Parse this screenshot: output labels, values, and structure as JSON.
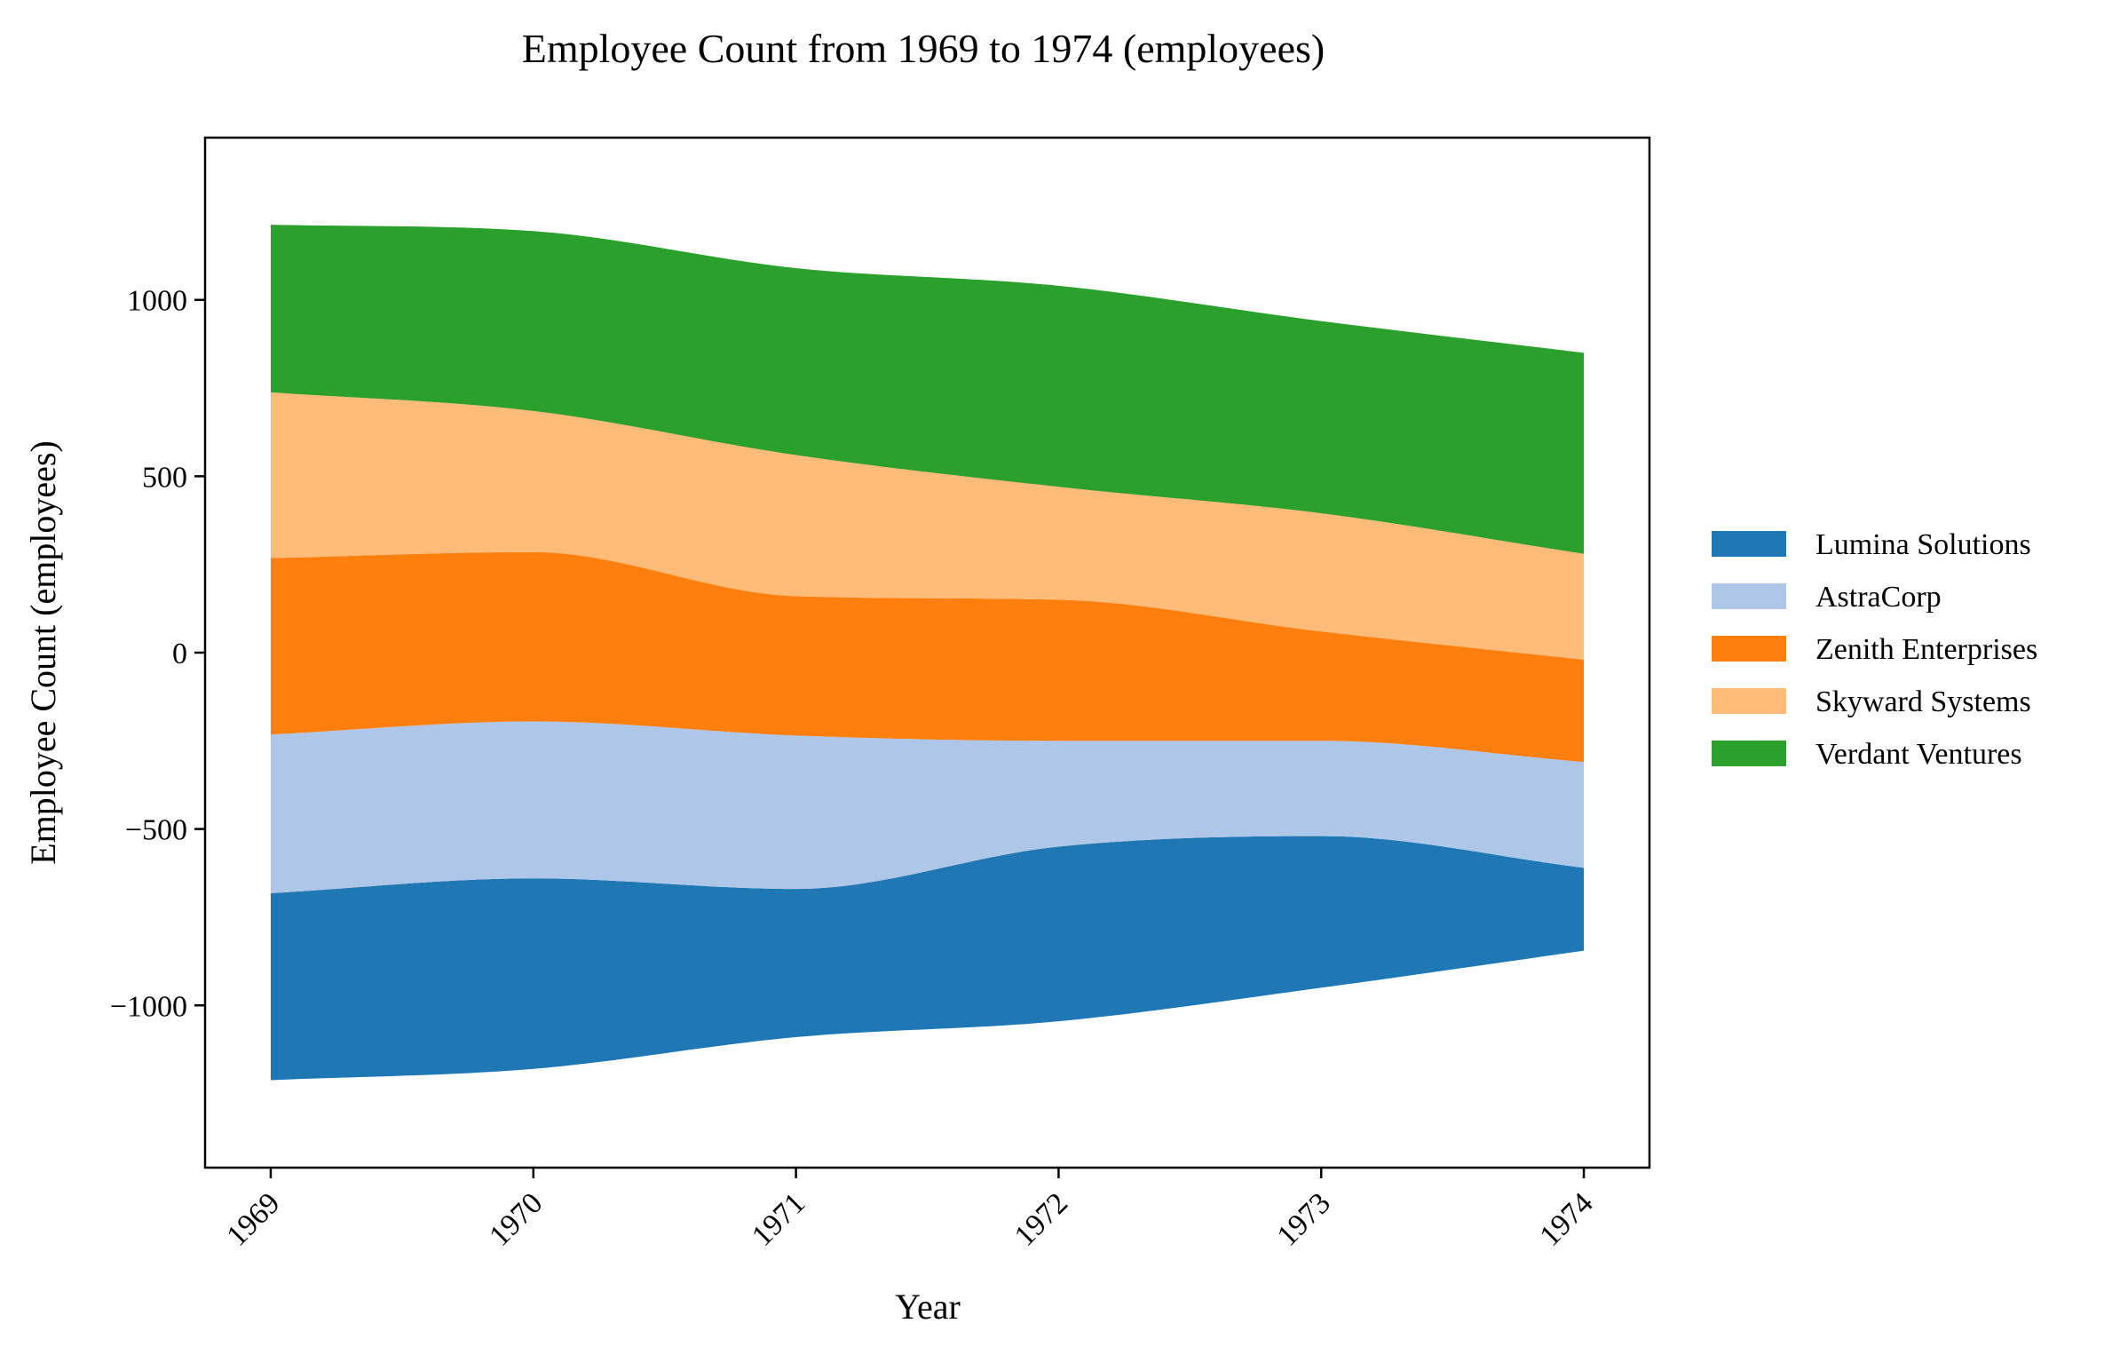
{
  "chart_data": {
    "type": "area",
    "subtype": "streamgraph",
    "title": "Employee Count from 1969 to 1974 (employees)",
    "xlabel": "Year",
    "ylabel": "Employee Count (employees)",
    "x": [
      1969,
      1970,
      1971,
      1972,
      1973,
      1974
    ],
    "x_tick_labels": [
      "1969",
      "1970",
      "1971",
      "1972",
      "1973",
      "1974"
    ],
    "y_ticks": [
      -1000,
      -500,
      0,
      500,
      1000
    ],
    "y_tick_labels": [
      "−1000",
      "−500",
      "0",
      "500",
      "1000"
    ],
    "ylim": [
      -1460,
      1460
    ],
    "xlim": [
      1968.75,
      1974.25
    ],
    "grid": false,
    "legend_position": "right",
    "baseline": [
      -1212,
      -1180,
      -1090,
      -1045,
      -950,
      -845
    ],
    "series": [
      {
        "name": "Lumina Solutions",
        "color": "#1f77b4",
        "values": [
          530,
          540,
          420,
          495,
          430,
          235
        ]
      },
      {
        "name": "AstraCorp",
        "color": "#aec7e8",
        "values": [
          450,
          445,
          435,
          300,
          270,
          300
        ]
      },
      {
        "name": "Zenith Enterprises",
        "color": "#ff7f0e",
        "values": [
          500,
          480,
          395,
          400,
          310,
          290
        ]
      },
      {
        "name": "Skyward Systems",
        "color": "#ffbb78",
        "values": [
          470,
          400,
          400,
          320,
          335,
          300
        ]
      },
      {
        "name": "Verdant Ventures",
        "color": "#2ca02c",
        "values": [
          475,
          510,
          530,
          570,
          545,
          570
        ]
      }
    ]
  }
}
